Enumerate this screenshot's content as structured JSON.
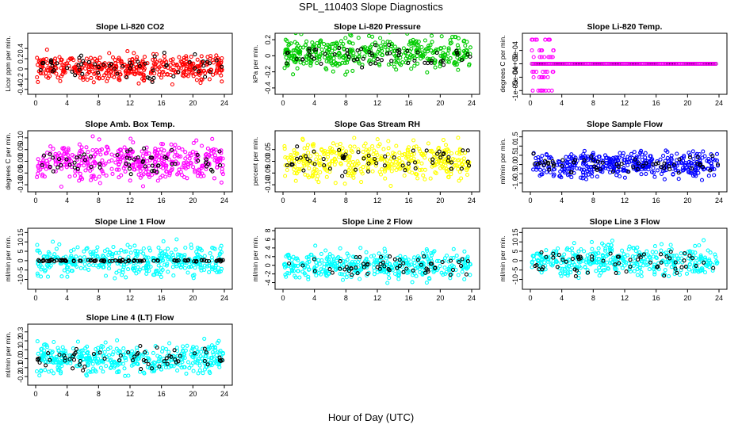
{
  "figure": {
    "title": "SPL_110403  Slope Diagnostics",
    "xlabel": "Hour of Day (UTC)"
  },
  "chart_data": [
    {
      "type": "scatter",
      "title": "Slope Li-820 CO2",
      "ylabel": "Licor ppm per min.",
      "xlim": [
        0,
        24
      ],
      "ylim": [
        -0.45,
        0.65
      ],
      "yticks": [
        -0.4,
        -0.2,
        0,
        0.2,
        0.4
      ],
      "xticks": [
        0,
        4,
        8,
        12,
        16,
        20,
        24
      ],
      "series": [
        {
          "color": "#ff0000",
          "center": 0.02,
          "spread": 0.13,
          "count": 420
        },
        {
          "color": "#000000",
          "center": 0.02,
          "spread": 0.12,
          "count": 60
        }
      ]
    },
    {
      "type": "scatter",
      "title": "Slope Li-820 Pressure",
      "ylabel": "kPa per min.",
      "xlim": [
        0,
        24
      ],
      "ylim": [
        -0.45,
        0.25
      ],
      "yticks": [
        -0.4,
        -0.2,
        0,
        0.2
      ],
      "xticks": [
        0,
        4,
        8,
        12,
        16,
        20,
        24
      ],
      "series": [
        {
          "color": "#00cc00",
          "center": 0.04,
          "spread": 0.1,
          "count": 420
        },
        {
          "color": "#000000",
          "center": 0.0,
          "spread": 0.06,
          "count": 60
        }
      ]
    },
    {
      "type": "scatter",
      "title": "Slope Li-820 Temp.",
      "ylabel": "degrees C per min.",
      "xlim": [
        0,
        24
      ],
      "ylim": [
        -0.00105,
        0.00105
      ],
      "yticks": [
        -0.001,
        -0.0005,
        0,
        0.0005
      ],
      "ytick_labels": [
        "-1e-03",
        "-5e-04",
        "0e+00",
        "5e-04"
      ],
      "xticks": [
        0,
        4,
        8,
        12,
        16,
        20,
        24
      ],
      "series": [
        {
          "color": "#000000",
          "center": 0,
          "spread": 0,
          "count": 120
        },
        {
          "color": "#ff00ff",
          "center": 0,
          "spread": 0,
          "count": 160
        }
      ]
    },
    {
      "type": "scatter",
      "title": "Slope Amb. Box Temp.",
      "ylabel": "degrees C per min.",
      "xlim": [
        0,
        24
      ],
      "ylim": [
        -0.12,
        0.12
      ],
      "yticks": [
        -0.1,
        -0.05,
        0,
        0.05,
        0.1
      ],
      "ytick_labels": [
        "-0.10",
        "-0.05",
        "0.00",
        "0.05",
        "0.10"
      ],
      "xticks": [
        0,
        4,
        8,
        12,
        16,
        20,
        24
      ],
      "series": [
        {
          "color": "#ff00ff",
          "center": 0.0,
          "spread": 0.04,
          "count": 420
        },
        {
          "color": "#000000",
          "center": 0.0,
          "spread": 0.025,
          "count": 60
        }
      ]
    },
    {
      "type": "scatter",
      "title": "Slope Gas Stream RH",
      "ylabel": "percent per min.",
      "xlim": [
        0,
        24
      ],
      "ylim": [
        -0.12,
        0.12
      ],
      "yticks": [
        -0.1,
        -0.05,
        0,
        0.05
      ],
      "ytick_labels": [
        "-0.10",
        "-0.05",
        "0.00",
        "0.05"
      ],
      "xticks": [
        0,
        4,
        8,
        12,
        16,
        20,
        24
      ],
      "series": [
        {
          "color": "#ffff00",
          "center": 0.0,
          "spread": 0.04,
          "count": 420
        },
        {
          "color": "#000000",
          "center": 0.0,
          "spread": 0.03,
          "count": 60
        }
      ]
    },
    {
      "type": "scatter",
      "title": "Slope Sample Flow",
      "ylabel": "ml/min per min.",
      "xlim": [
        0,
        24
      ],
      "ylim": [
        -1.35,
        1.7
      ],
      "yticks": [
        -1,
        -0.5,
        0,
        0.5,
        1,
        1.5
      ],
      "ytick_labels": [
        "-1.0",
        "-0.5",
        "0.0",
        "0.5",
        "1.0",
        "1.5"
      ],
      "xticks": [
        0,
        4,
        8,
        12,
        16,
        20,
        24
      ],
      "series": [
        {
          "color": "#0000ff",
          "center": 0.0,
          "spread": 0.35,
          "count": 420
        },
        {
          "color": "#000000",
          "center": 0.0,
          "spread": 0.3,
          "count": 60
        }
      ]
    },
    {
      "type": "scatter",
      "title": "Slope Line 1 Flow",
      "ylabel": "ml/min per min.",
      "xlim": [
        0,
        24
      ],
      "ylim": [
        -14,
        16
      ],
      "yticks": [
        -10,
        -5,
        0,
        5,
        10,
        15
      ],
      "xticks": [
        0,
        4,
        8,
        12,
        16,
        20,
        24
      ],
      "series": [
        {
          "color": "#00ffff",
          "center": 0.0,
          "spread": 4.0,
          "count": 380
        },
        {
          "color": "#000000",
          "center": 0.0,
          "spread": 0.25,
          "count": 90
        }
      ]
    },
    {
      "type": "scatter",
      "title": "Slope Line 2 Flow",
      "ylabel": "ml/min per min.",
      "xlim": [
        0,
        24
      ],
      "ylim": [
        -5,
        8
      ],
      "yticks": [
        -4,
        -2,
        0,
        2,
        4,
        6,
        8
      ],
      "xticks": [
        0,
        4,
        8,
        12,
        16,
        20,
        24
      ],
      "series": [
        {
          "color": "#00ffff",
          "center": 0.0,
          "spread": 1.6,
          "count": 400
        },
        {
          "color": "#000000",
          "center": 0.0,
          "spread": 1.1,
          "count": 60
        }
      ]
    },
    {
      "type": "scatter",
      "title": "Slope Line 3 Flow",
      "ylabel": "ml/min per min.",
      "xlim": [
        0,
        24
      ],
      "ylim": [
        -14,
        16
      ],
      "yticks": [
        -10,
        -5,
        0,
        5,
        10,
        15
      ],
      "xticks": [
        0,
        4,
        8,
        12,
        16,
        20,
        24
      ],
      "series": [
        {
          "color": "#00ffff",
          "center": 0.0,
          "spread": 4.0,
          "count": 400
        },
        {
          "color": "#000000",
          "center": 0.0,
          "spread": 3.0,
          "count": 60
        }
      ]
    },
    {
      "type": "scatter",
      "title": "Slope Line 4 (LT) Flow",
      "ylabel": "ml/min per min.",
      "xlim": [
        0,
        24
      ],
      "ylim": [
        -0.27,
        0.36
      ],
      "yticks": [
        -0.2,
        -0.1,
        0,
        0.1,
        0.2,
        0.3
      ],
      "ytick_labels": [
        "-0.2",
        "-0.1",
        "0.0",
        "0.1",
        "0.2",
        "0.3"
      ],
      "xticks": [
        0,
        4,
        8,
        12,
        16,
        20,
        24
      ],
      "series": [
        {
          "color": "#00ffff",
          "center": 0.0,
          "spread": 0.08,
          "count": 420
        },
        {
          "color": "#000000",
          "center": 0.0,
          "spread": 0.06,
          "count": 60
        }
      ]
    }
  ]
}
